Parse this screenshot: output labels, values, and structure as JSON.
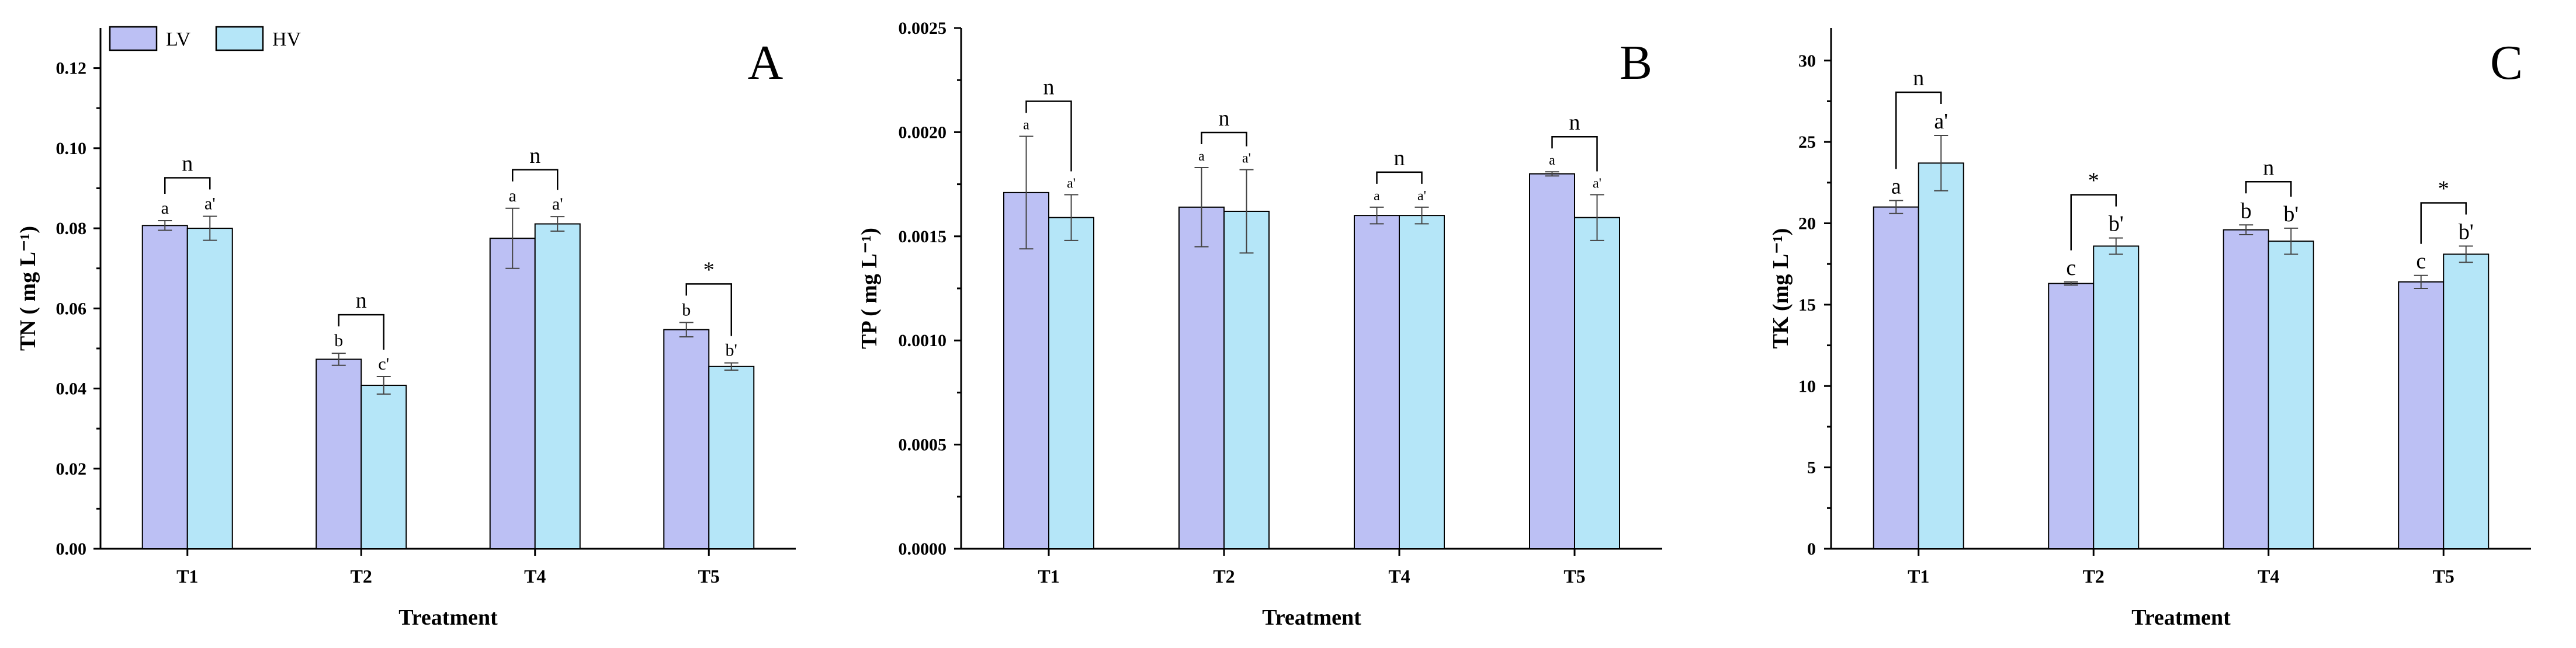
{
  "legend": {
    "items": [
      {
        "label": "LV",
        "color": "#bcc0f4"
      },
      {
        "label": "HV",
        "color": "#b5e6f8"
      }
    ]
  },
  "chart_data": [
    {
      "type": "bar",
      "panel_letter": "A",
      "ylabel": "TN ( mg L⁻¹)",
      "xlabel": "Treatment",
      "ylim": [
        0,
        0.13
      ],
      "yticks": [
        "0.00",
        "0.02",
        "0.04",
        "0.06",
        "0.08",
        "0.10",
        "0.12"
      ],
      "categories": [
        "T1",
        "T2",
        "T4",
        "T5"
      ],
      "series": [
        {
          "name": "LV",
          "values": [
            0.0807,
            0.0473,
            0.0775,
            0.0547
          ],
          "errors": [
            0.0012,
            0.0015,
            0.0075,
            0.0018
          ],
          "letters": [
            "a",
            "b",
            "a",
            "b"
          ]
        },
        {
          "name": "HV",
          "values": [
            0.08,
            0.0408,
            0.0811,
            0.0455
          ],
          "errors": [
            0.003,
            0.0022,
            0.0018,
            0.0009
          ],
          "letters": [
            "a'",
            "c'",
            "a'",
            "b'"
          ]
        }
      ],
      "sig": [
        "n",
        "n",
        "n",
        "*"
      ]
    },
    {
      "type": "bar",
      "panel_letter": "B",
      "ylabel": "TP ( mg L⁻¹)",
      "xlabel": "Treatment",
      "ylim": [
        0,
        0.0025
      ],
      "yticks": [
        "0.0000",
        "0.0005",
        "0.0010",
        "0.0015",
        "0.0020",
        "0.0025"
      ],
      "categories": [
        "T1",
        "T2",
        "T4",
        "T5"
      ],
      "series": [
        {
          "name": "LV",
          "values": [
            0.00171,
            0.00164,
            0.0016,
            0.0018
          ],
          "errors": [
            0.00027,
            0.00019,
            4e-05,
            1e-05
          ],
          "letters": [
            "a",
            "a",
            "a",
            "a"
          ]
        },
        {
          "name": "HV",
          "values": [
            0.00159,
            0.00162,
            0.0016,
            0.00159
          ],
          "errors": [
            0.00011,
            0.0002,
            4e-05,
            0.00011
          ],
          "letters": [
            "a'",
            "a'",
            "a'",
            "a'"
          ]
        }
      ],
      "sig": [
        "n",
        "n",
        "n",
        "n"
      ]
    },
    {
      "type": "bar",
      "panel_letter": "C",
      "ylabel": "TK (mg L⁻¹)",
      "xlabel": "Treatment",
      "ylim": [
        0,
        32
      ],
      "yticks": [
        "0",
        "5",
        "10",
        "15",
        "20",
        "25",
        "30"
      ],
      "categories": [
        "T1",
        "T2",
        "T4",
        "T5"
      ],
      "series": [
        {
          "name": "LV",
          "values": [
            21.0,
            16.3,
            19.6,
            16.4
          ],
          "errors": [
            0.4,
            0.1,
            0.3,
            0.4
          ],
          "letters": [
            "a",
            "c",
            "b",
            "c"
          ]
        },
        {
          "name": "HV",
          "values": [
            23.7,
            18.6,
            18.9,
            18.1
          ],
          "errors": [
            1.7,
            0.5,
            0.8,
            0.5
          ],
          "letters": [
            "a'",
            "b'",
            "b'",
            "b'"
          ]
        }
      ],
      "sig": [
        "n",
        "*",
        "n",
        "*"
      ]
    }
  ]
}
